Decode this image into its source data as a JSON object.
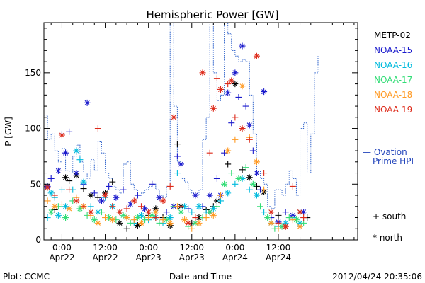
{
  "chart_data": {
    "type": "scatter",
    "title": "Hemispheric Power [GW]",
    "ylabel": "P [GW]",
    "xlabel": "Date and Time",
    "ylim": [
      0,
      195
    ],
    "yticks": [
      0,
      50,
      100,
      150
    ],
    "x_unit": "hours since Apr22 00:00",
    "xlim": [
      -5,
      82
    ],
    "xticks": [
      {
        "x": 0,
        "time": "0:00",
        "date": "Apr22"
      },
      {
        "x": 12,
        "time": "12:00",
        "date": "Apr22"
      },
      {
        "x": 24,
        "time": "0:00",
        "date": "Apr23"
      },
      {
        "x": 36,
        "time": "12:00",
        "date": "Apr23"
      },
      {
        "x": 48,
        "time": "0:00",
        "date": "Apr24"
      },
      {
        "x": 60,
        "time": "12:00",
        "date": "Apr24"
      }
    ],
    "legend_position": "right",
    "series": [
      {
        "name": "METP-02",
        "color": "#000000",
        "points": [
          [
            -2,
            27
          ],
          [
            1,
            56
          ],
          [
            2,
            53
          ],
          [
            4,
            58
          ],
          [
            6,
            46
          ],
          [
            8,
            40
          ],
          [
            10,
            38
          ],
          [
            12,
            42
          ],
          [
            14,
            52
          ],
          [
            16,
            15
          ],
          [
            18,
            10
          ],
          [
            21,
            13
          ],
          [
            24,
            22
          ],
          [
            26,
            28
          ],
          [
            28,
            20
          ],
          [
            30,
            13
          ],
          [
            32,
            86
          ],
          [
            33,
            30
          ],
          [
            36,
            15
          ],
          [
            38,
            20
          ],
          [
            40,
            27
          ],
          [
            41,
            25
          ],
          [
            42,
            30
          ],
          [
            43,
            35
          ],
          [
            46,
            68
          ],
          [
            48,
            140
          ],
          [
            50,
            63
          ],
          [
            52,
            56
          ],
          [
            54,
            48
          ],
          [
            56,
            43
          ],
          [
            60,
            22
          ],
          [
            62,
            12
          ],
          [
            64,
            20
          ],
          [
            66,
            25
          ],
          [
            68,
            20
          ]
        ]
      },
      {
        "name": "NOAA-15",
        "color": "#1a1acc",
        "points": [
          [
            -4,
            48
          ],
          [
            -3,
            55
          ],
          [
            -1,
            62
          ],
          [
            0,
            95
          ],
          [
            1,
            78
          ],
          [
            2,
            97
          ],
          [
            4,
            60
          ],
          [
            6,
            50
          ],
          [
            7,
            123
          ],
          [
            9,
            42
          ],
          [
            11,
            35
          ],
          [
            13,
            48
          ],
          [
            15,
            38
          ],
          [
            17,
            45
          ],
          [
            19,
            32
          ],
          [
            21,
            40
          ],
          [
            23,
            28
          ],
          [
            25,
            50
          ],
          [
            27,
            38
          ],
          [
            29,
            25
          ],
          [
            31,
            30
          ],
          [
            32,
            75
          ],
          [
            33,
            68
          ],
          [
            35,
            28
          ],
          [
            37,
            40
          ],
          [
            39,
            30
          ],
          [
            41,
            40
          ],
          [
            43,
            55
          ],
          [
            44,
            40
          ],
          [
            45,
            78
          ],
          [
            46,
            132
          ],
          [
            47,
            105
          ],
          [
            48,
            150
          ],
          [
            49,
            128
          ],
          [
            50,
            174
          ],
          [
            51,
            120
          ],
          [
            52,
            103
          ],
          [
            53,
            80
          ],
          [
            54,
            60
          ],
          [
            55,
            45
          ],
          [
            56,
            133
          ],
          [
            58,
            20
          ],
          [
            60,
            16
          ],
          [
            62,
            25
          ],
          [
            64,
            22
          ],
          [
            66,
            12
          ],
          [
            67,
            25
          ]
        ]
      },
      {
        "name": "NOAA-16",
        "color": "#00bbdd",
        "points": [
          [
            -4,
            20
          ],
          [
            -3,
            42
          ],
          [
            -2,
            38
          ],
          [
            -1,
            22
          ],
          [
            0,
            45
          ],
          [
            1,
            30
          ],
          [
            3,
            45
          ],
          [
            4,
            80
          ],
          [
            5,
            72
          ],
          [
            6,
            52
          ],
          [
            8,
            30
          ],
          [
            10,
            25
          ],
          [
            12,
            38
          ],
          [
            14,
            30
          ],
          [
            16,
            25
          ],
          [
            18,
            20
          ],
          [
            20,
            15
          ],
          [
            22,
            22
          ],
          [
            24,
            18
          ],
          [
            26,
            20
          ],
          [
            28,
            15
          ],
          [
            30,
            20
          ],
          [
            32,
            60
          ],
          [
            34,
            30
          ],
          [
            36,
            25
          ],
          [
            38,
            30
          ],
          [
            40,
            25
          ],
          [
            42,
            28
          ],
          [
            44,
            35
          ],
          [
            46,
            42
          ],
          [
            48,
            50
          ],
          [
            50,
            55
          ],
          [
            52,
            45
          ],
          [
            54,
            40
          ],
          [
            56,
            25
          ],
          [
            58,
            15
          ],
          [
            60,
            12
          ],
          [
            62,
            15
          ],
          [
            64,
            20
          ],
          [
            66,
            15
          ]
        ]
      },
      {
        "name": "NOAA-17",
        "color": "#33dd77",
        "points": [
          [
            -3,
            25
          ],
          [
            -1,
            30
          ],
          [
            1,
            20
          ],
          [
            3,
            35
          ],
          [
            5,
            28
          ],
          [
            7,
            22
          ],
          [
            9,
            18
          ],
          [
            11,
            25
          ],
          [
            13,
            20
          ],
          [
            15,
            18
          ],
          [
            17,
            22
          ],
          [
            19,
            15
          ],
          [
            21,
            20
          ],
          [
            23,
            18
          ],
          [
            25,
            22
          ],
          [
            27,
            15
          ],
          [
            29,
            18
          ],
          [
            31,
            30
          ],
          [
            33,
            25
          ],
          [
            35,
            12
          ],
          [
            37,
            15
          ],
          [
            39,
            20
          ],
          [
            41,
            25
          ],
          [
            43,
            30
          ],
          [
            45,
            50
          ],
          [
            47,
            60
          ],
          [
            49,
            55
          ],
          [
            51,
            65
          ],
          [
            53,
            50
          ],
          [
            55,
            30
          ],
          [
            57,
            20
          ],
          [
            59,
            10
          ],
          [
            61,
            12
          ],
          [
            63,
            20
          ],
          [
            65,
            18
          ],
          [
            67,
            15
          ]
        ]
      },
      {
        "name": "NOAA-18",
        "color": "#ff9922",
        "points": [
          [
            -4,
            35
          ],
          [
            -2,
            30
          ],
          [
            0,
            32
          ],
          [
            2,
            28
          ],
          [
            4,
            38
          ],
          [
            6,
            30
          ],
          [
            8,
            22
          ],
          [
            10,
            15
          ],
          [
            12,
            20
          ],
          [
            14,
            18
          ],
          [
            16,
            25
          ],
          [
            18,
            20
          ],
          [
            20,
            18
          ],
          [
            22,
            15
          ],
          [
            24,
            20
          ],
          [
            26,
            25
          ],
          [
            28,
            18
          ],
          [
            30,
            15
          ],
          [
            32,
            30
          ],
          [
            34,
            18
          ],
          [
            36,
            10
          ],
          [
            38,
            15
          ],
          [
            40,
            20
          ],
          [
            42,
            22
          ],
          [
            44,
            40
          ],
          [
            46,
            80
          ],
          [
            48,
            90
          ],
          [
            50,
            138
          ],
          [
            52,
            92
          ],
          [
            54,
            70
          ],
          [
            56,
            45
          ],
          [
            58,
            15
          ],
          [
            60,
            10
          ],
          [
            62,
            12
          ],
          [
            64,
            18
          ],
          [
            66,
            12
          ]
        ]
      },
      {
        "name": "NOAA-19",
        "color": "#dd2a1a",
        "points": [
          [
            -4,
            47
          ],
          [
            -2,
            40
          ],
          [
            0,
            94
          ],
          [
            2,
            45
          ],
          [
            4,
            35
          ],
          [
            6,
            30
          ],
          [
            8,
            25
          ],
          [
            10,
            100
          ],
          [
            12,
            40
          ],
          [
            14,
            30
          ],
          [
            16,
            25
          ],
          [
            18,
            28
          ],
          [
            20,
            35
          ],
          [
            22,
            30
          ],
          [
            24,
            25
          ],
          [
            26,
            20
          ],
          [
            28,
            35
          ],
          [
            30,
            48
          ],
          [
            31,
            110
          ],
          [
            33,
            30
          ],
          [
            35,
            15
          ],
          [
            37,
            20
          ],
          [
            39,
            150
          ],
          [
            41,
            78
          ],
          [
            42,
            118
          ],
          [
            43,
            145
          ],
          [
            44,
            135
          ],
          [
            46,
            140
          ],
          [
            47,
            143
          ],
          [
            48,
            110
          ],
          [
            50,
            100
          ],
          [
            52,
            90
          ],
          [
            54,
            165
          ],
          [
            56,
            60
          ],
          [
            58,
            25
          ],
          [
            60,
            15
          ],
          [
            62,
            12
          ],
          [
            64,
            48
          ],
          [
            66,
            25
          ],
          [
            67,
            20
          ]
        ]
      }
    ],
    "ovation": {
      "name": "— Ovation Prime HPI",
      "color": "#3366cc",
      "points": [
        [
          -5,
          112
        ],
        [
          -4,
          90
        ],
        [
          -3,
          95
        ],
        [
          -2,
          80
        ],
        [
          -1,
          70
        ],
        [
          0,
          82
        ],
        [
          1,
          62
        ],
        [
          2,
          60
        ],
        [
          3,
          75
        ],
        [
          4,
          85
        ],
        [
          5,
          70
        ],
        [
          6,
          60
        ],
        [
          7,
          55
        ],
        [
          8,
          72
        ],
        [
          9,
          62
        ],
        [
          10,
          88
        ],
        [
          11,
          78
        ],
        [
          12,
          60
        ],
        [
          13,
          55
        ],
        [
          14,
          48
        ],
        [
          15,
          45
        ],
        [
          16,
          42
        ],
        [
          17,
          68
        ],
        [
          18,
          70
        ],
        [
          19,
          50
        ],
        [
          20,
          45
        ],
        [
          21,
          40
        ],
        [
          22,
          42
        ],
        [
          23,
          45
        ],
        [
          24,
          48
        ],
        [
          25,
          50
        ],
        [
          26,
          45
        ],
        [
          27,
          40
        ],
        [
          28,
          38
        ],
        [
          29,
          48
        ],
        [
          30,
          200
        ],
        [
          31,
          120
        ],
        [
          32,
          70
        ],
        [
          33,
          55
        ],
        [
          34,
          52
        ],
        [
          35,
          45
        ],
        [
          36,
          42
        ],
        [
          37,
          40
        ],
        [
          38,
          45
        ],
        [
          39,
          90
        ],
        [
          40,
          110
        ],
        [
          41,
          200
        ],
        [
          42,
          150
        ],
        [
          43,
          125
        ],
        [
          44,
          130
        ],
        [
          45,
          200
        ],
        [
          46,
          185
        ],
        [
          47,
          170
        ],
        [
          48,
          165
        ],
        [
          49,
          160
        ],
        [
          50,
          162
        ],
        [
          51,
          160
        ],
        [
          52,
          130
        ],
        [
          53,
          95
        ],
        [
          54,
          62
        ],
        [
          55,
          55
        ],
        [
          56,
          50
        ],
        [
          57,
          30
        ],
        [
          58,
          28
        ],
        [
          59,
          45
        ],
        [
          60,
          45
        ],
        [
          61,
          40
        ],
        [
          62,
          50
        ],
        [
          63,
          62
        ],
        [
          64,
          55
        ],
        [
          65,
          40
        ],
        [
          66,
          100
        ],
        [
          67,
          105
        ],
        [
          68,
          60
        ],
        [
          69,
          95
        ],
        [
          70,
          150
        ],
        [
          71,
          165
        ]
      ]
    },
    "marker_legend": [
      {
        "symbol": "+",
        "label": "south"
      },
      {
        "symbol": "*",
        "label": "north"
      }
    ]
  },
  "footer": {
    "left": "Plot: CCMC",
    "right": "2012/04/24 20:35:06"
  },
  "legend": {
    "ovation_line1": "— Ovation",
    "ovation_line2": "Prime HPI"
  }
}
